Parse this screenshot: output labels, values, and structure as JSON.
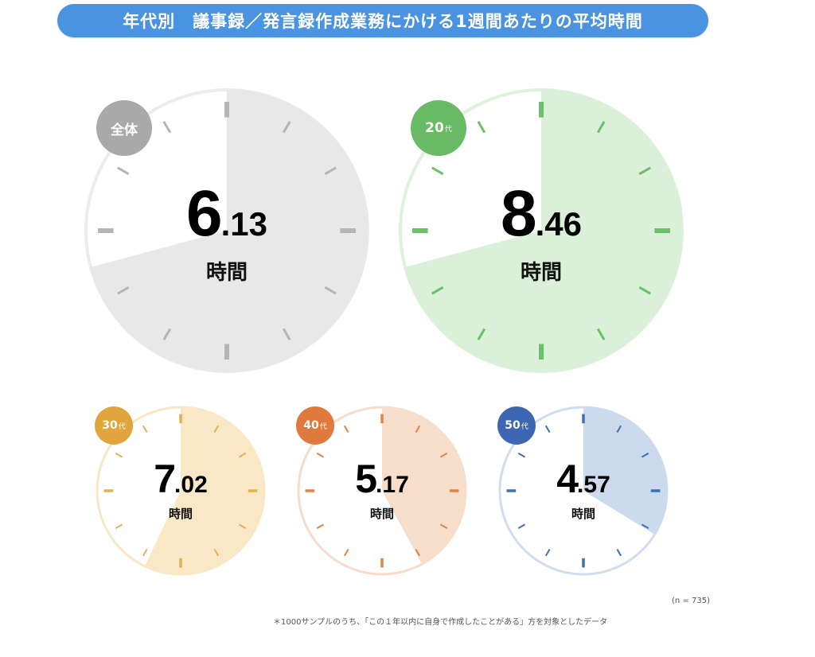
{
  "header": {
    "title": "年代別　議事録／発言録作成業務にかける1週間あたりの平均時間",
    "color": "#4a93e0"
  },
  "unit_label": "時間",
  "clocks": [
    {
      "label": "全体",
      "label_suffix": "",
      "int": "6",
      "dec": ".13",
      "value": 6.13,
      "fill": "#e8e8e8",
      "tick": "#b5b5b5",
      "badge": "#a9a9a9",
      "rim": "#ececec",
      "end_hour": 8.5
    },
    {
      "label": "20",
      "label_suffix": "代",
      "int": "8",
      "dec": ".46",
      "value": 8.46,
      "fill": "#daf0d8",
      "tick": "#6cc067",
      "badge": "#68bb64",
      "rim": "#dff1dc",
      "end_hour": 8.5
    },
    {
      "label": "30",
      "label_suffix": "代",
      "int": "7",
      "dec": ".02",
      "value": 7.02,
      "fill": "#f9e7c6",
      "tick": "#e4b152",
      "badge": "#e0a53d",
      "rim": "#f8e6c5",
      "end_hour": 6.85
    },
    {
      "label": "40",
      "label_suffix": "代",
      "int": "5",
      "dec": ".17",
      "value": 5.17,
      "fill": "#f7decb",
      "tick": "#e0844a",
      "badge": "#e07a3c",
      "rim": "#f6dccb",
      "end_hour": 5.05
    },
    {
      "label": "50",
      "label_suffix": "代",
      "int": "4",
      "dec": ".57",
      "value": 4.57,
      "fill": "#ccdaee",
      "tick": "#3f6fb5",
      "badge": "#3d66b3",
      "rim": "#d0ddf0",
      "end_hour": 4.05
    }
  ],
  "notes": {
    "n": "(n = 735)",
    "footnote": "＊1000サンプルのうち、「この１年以内に自身で作成したことがある」方を対象としたデータ"
  },
  "chart_data": {
    "type": "pie",
    "title": "年代別　議事録／発言録作成業務にかける1週間あたりの平均時間",
    "subtype": "clock-dial (hours out of 12)",
    "categories": [
      "全体",
      "20代",
      "30代",
      "40代",
      "50代"
    ],
    "values": [
      6.13,
      8.46,
      7.02,
      5.17,
      4.57
    ],
    "unit": "時間",
    "sample_size": 735,
    "annotations": [
      "(n = 735)",
      "＊1000サンプルのうち、「この１年以内に自身で作成したことがある」方を対象としたデータ"
    ]
  }
}
